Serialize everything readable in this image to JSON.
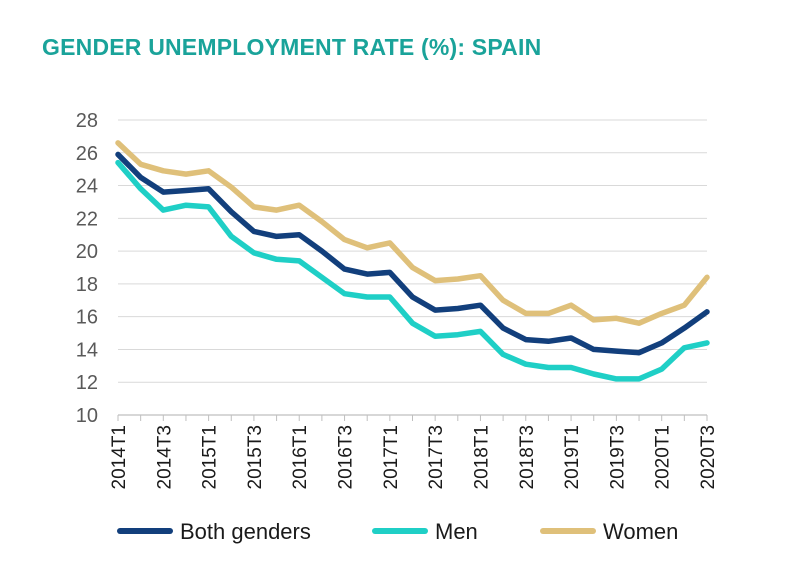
{
  "chart_data": {
    "type": "line",
    "title": "GENDER UNEMPLOYMENT RATE (%): SPAIN",
    "xlabel": "",
    "ylabel": "",
    "ylim": [
      10,
      28
    ],
    "yticks": [
      10,
      12,
      14,
      16,
      18,
      20,
      22,
      24,
      26,
      28
    ],
    "grid": true,
    "legend_position": "bottom",
    "x": [
      "2014T1",
      "2014T2",
      "2014T3",
      "2014T4",
      "2015T1",
      "2015T2",
      "2015T3",
      "2015T4",
      "2016T1",
      "2016T2",
      "2016T3",
      "2016T4",
      "2017T1",
      "2017T2",
      "2017T3",
      "2017T4",
      "2018T1",
      "2018T2",
      "2018T3",
      "2018T4",
      "2019T1",
      "2019T2",
      "2019T3",
      "2019T4",
      "2020T1",
      "2020T2",
      "2020T3"
    ],
    "xtick_labels": [
      "2014T1",
      "2014T3",
      "2015T1",
      "2015T3",
      "2016T1",
      "2016T3",
      "2017T1",
      "2017T3",
      "2018T1",
      "2018T3",
      "2019T1",
      "2019T3",
      "2020T1",
      "2020T3"
    ],
    "series": [
      {
        "name": "Both genders",
        "color": "#123f7c",
        "values": [
          25.9,
          24.5,
          23.6,
          23.7,
          23.8,
          22.4,
          21.2,
          20.9,
          21.0,
          20.0,
          18.9,
          18.6,
          18.7,
          17.2,
          16.4,
          16.5,
          16.7,
          15.3,
          14.6,
          14.5,
          14.7,
          14.0,
          13.9,
          13.8,
          14.4,
          15.3,
          16.3
        ]
      },
      {
        "name": "Men",
        "color": "#1fcfc6",
        "values": [
          25.4,
          23.8,
          22.5,
          22.8,
          22.7,
          20.9,
          19.9,
          19.5,
          19.4,
          18.4,
          17.4,
          17.2,
          17.2,
          15.6,
          14.8,
          14.9,
          15.1,
          13.7,
          13.1,
          12.9,
          12.9,
          12.5,
          12.2,
          12.2,
          12.8,
          14.1,
          14.4
        ]
      },
      {
        "name": "Women",
        "color": "#dfc07a",
        "values": [
          26.6,
          25.3,
          24.9,
          24.7,
          24.9,
          23.9,
          22.7,
          22.5,
          22.8,
          21.8,
          20.7,
          20.2,
          20.5,
          19.0,
          18.2,
          18.3,
          18.5,
          17.0,
          16.2,
          16.2,
          16.7,
          15.8,
          15.9,
          15.6,
          16.2,
          16.7,
          18.4
        ]
      }
    ]
  }
}
